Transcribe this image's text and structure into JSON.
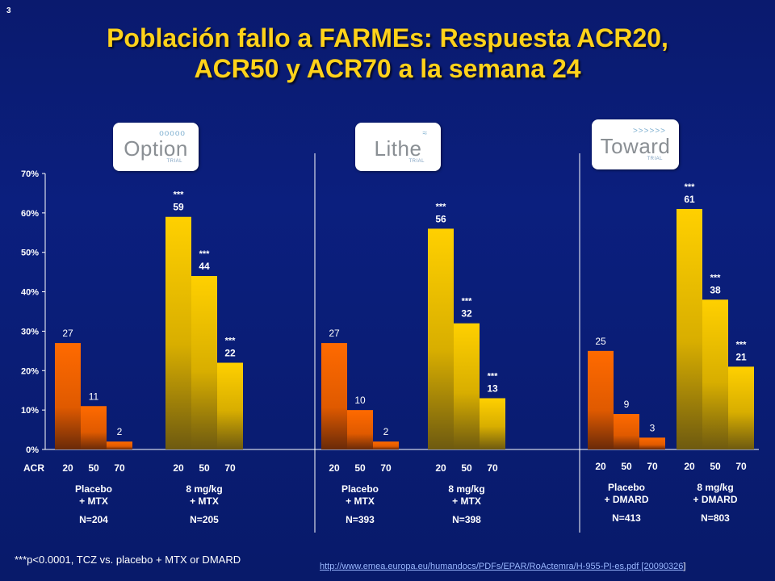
{
  "slide_number": "3",
  "title_line1": "Población fallo a FARMEs: Respuesta ACR20,",
  "title_line2": "ACR50 y ACR70 a la semana 24",
  "logos": [
    {
      "name": "Option",
      "sub": "TRIAL",
      "mark": "ooooo"
    },
    {
      "name": "Lithe",
      "sub": "TRIAL",
      "mark": "≈"
    },
    {
      "name": "Toward",
      "sub": "TRIAL",
      "mark": ">>>>>>"
    }
  ],
  "footnote": "***p<0.0001, TCZ vs. placebo + MTX or DMARD",
  "source_link": "http://www.emea.europa.eu/humandocs/PDFs/EPAR/RoActemra/H-955-PI-es.pdf [20090326",
  "source_close": "]",
  "colors": {
    "placebo": "#ff6a00",
    "tcz": "#ffd000",
    "title": "#ffd21a"
  },
  "chart_data": {
    "type": "bar",
    "ylim": [
      0,
      70
    ],
    "yticks": [
      0,
      10,
      20,
      30,
      40,
      50,
      60,
      70
    ],
    "ytick_labels": [
      "0%",
      "10%",
      "20%",
      "30%",
      "40%",
      "50%",
      "60%",
      "70%"
    ],
    "x_axis_label": "ACR",
    "categories": [
      "20",
      "50",
      "70"
    ],
    "trials": [
      {
        "name": "Option",
        "groups": [
          {
            "label_line1": "Placebo",
            "label_line2": "+ MTX",
            "n": "N=204",
            "kind": "placebo",
            "values": [
              27,
              11,
              2
            ],
            "sig": [
              "",
              "",
              ""
            ]
          },
          {
            "label_line1": "8 mg/kg",
            "label_line2": "+ MTX",
            "n": "N=205",
            "kind": "tcz",
            "values": [
              59,
              44,
              22
            ],
            "sig": [
              "***",
              "***",
              "***"
            ]
          }
        ]
      },
      {
        "name": "Lithe",
        "groups": [
          {
            "label_line1": "Placebo",
            "label_line2": "+ MTX",
            "n": "N=393",
            "kind": "placebo",
            "values": [
              27,
              10,
              2
            ],
            "sig": [
              "",
              "",
              ""
            ]
          },
          {
            "label_line1": "8 mg/kg",
            "label_line2": "+ MTX",
            "n": "N=398",
            "kind": "tcz",
            "values": [
              56,
              32,
              13
            ],
            "sig": [
              "***",
              "***",
              "***"
            ]
          }
        ]
      },
      {
        "name": "Toward",
        "groups": [
          {
            "label_line1": "Placebo",
            "label_line2": "+ DMARD",
            "n": "N=413",
            "kind": "placebo",
            "values": [
              25,
              9,
              3
            ],
            "sig": [
              "",
              "",
              ""
            ]
          },
          {
            "label_line1": "8 mg/kg",
            "label_line2": "+ DMARD",
            "n": "N=803",
            "kind": "tcz",
            "values": [
              61,
              38,
              21
            ],
            "sig": [
              "***",
              "***",
              "***"
            ]
          }
        ]
      }
    ]
  }
}
